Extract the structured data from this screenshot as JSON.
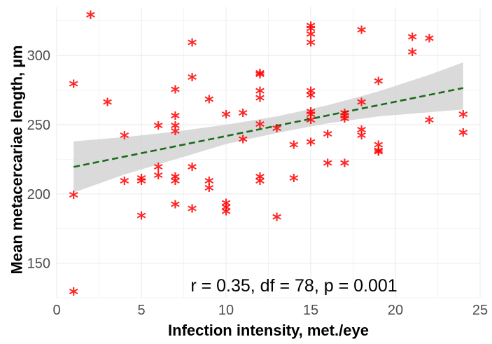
{
  "chart_data": {
    "type": "scatter",
    "title": "",
    "xlabel": "Infection intensity, met./eye",
    "ylabel": "Mean metacercariae length, µm",
    "xlim": [
      0,
      25
    ],
    "ylim": [
      125,
      335
    ],
    "x_ticks": [
      0,
      5,
      10,
      15,
      20,
      25
    ],
    "y_ticks": [
      150,
      200,
      250,
      300
    ],
    "annotation": "r = 0.35, df = 78, p = 0.001",
    "grid": true,
    "legend": "none",
    "marker": "*",
    "colors": {
      "points": "#ff0000",
      "trend_line": "#1a6b1a",
      "confidence_band": "#d3d3d3",
      "grid": "#ebebeb"
    },
    "trend_line": {
      "style": "dashed",
      "x": [
        1,
        24
      ],
      "y": [
        219.5,
        276.5
      ]
    },
    "confidence_band": {
      "x": [
        1,
        4,
        7,
        10,
        13,
        16,
        19,
        22,
        24
      ],
      "lower": [
        201,
        214,
        225,
        236,
        244,
        251,
        256,
        259,
        261
      ],
      "upper": [
        238,
        241,
        245,
        250,
        256,
        264,
        274,
        286,
        295
      ]
    },
    "points": [
      {
        "x": 1,
        "y": 129
      },
      {
        "x": 1,
        "y": 199
      },
      {
        "x": 1,
        "y": 279
      },
      {
        "x": 2,
        "y": 329
      },
      {
        "x": 3,
        "y": 266
      },
      {
        "x": 4,
        "y": 209
      },
      {
        "x": 4,
        "y": 242
      },
      {
        "x": 5,
        "y": 184
      },
      {
        "x": 5,
        "y": 209
      },
      {
        "x": 5,
        "y": 211
      },
      {
        "x": 6,
        "y": 213
      },
      {
        "x": 6,
        "y": 219
      },
      {
        "x": 6,
        "y": 249
      },
      {
        "x": 7,
        "y": 192
      },
      {
        "x": 7,
        "y": 209
      },
      {
        "x": 7,
        "y": 212
      },
      {
        "x": 7,
        "y": 245
      },
      {
        "x": 7,
        "y": 249
      },
      {
        "x": 7,
        "y": 256
      },
      {
        "x": 7,
        "y": 275
      },
      {
        "x": 8,
        "y": 189
      },
      {
        "x": 8,
        "y": 219
      },
      {
        "x": 8,
        "y": 284
      },
      {
        "x": 8,
        "y": 309
      },
      {
        "x": 9,
        "y": 204
      },
      {
        "x": 9,
        "y": 209
      },
      {
        "x": 9,
        "y": 268
      },
      {
        "x": 10,
        "y": 187
      },
      {
        "x": 10,
        "y": 190
      },
      {
        "x": 10,
        "y": 193
      },
      {
        "x": 10,
        "y": 257
      },
      {
        "x": 11,
        "y": 239
      },
      {
        "x": 11,
        "y": 258
      },
      {
        "x": 12,
        "y": 209
      },
      {
        "x": 12,
        "y": 212
      },
      {
        "x": 12,
        "y": 250
      },
      {
        "x": 12,
        "y": 269
      },
      {
        "x": 12,
        "y": 274
      },
      {
        "x": 12,
        "y": 286
      },
      {
        "x": 12,
        "y": 287
      },
      {
        "x": 13,
        "y": 183
      },
      {
        "x": 13,
        "y": 247
      },
      {
        "x": 14,
        "y": 211
      },
      {
        "x": 14,
        "y": 235
      },
      {
        "x": 15,
        "y": 237
      },
      {
        "x": 15,
        "y": 253
      },
      {
        "x": 15,
        "y": 257
      },
      {
        "x": 15,
        "y": 259
      },
      {
        "x": 15,
        "y": 271
      },
      {
        "x": 15,
        "y": 274
      },
      {
        "x": 15,
        "y": 309
      },
      {
        "x": 15,
        "y": 315
      },
      {
        "x": 15,
        "y": 319
      },
      {
        "x": 15,
        "y": 321
      },
      {
        "x": 16,
        "y": 222
      },
      {
        "x": 16,
        "y": 243
      },
      {
        "x": 17,
        "y": 222
      },
      {
        "x": 17,
        "y": 254
      },
      {
        "x": 17,
        "y": 256
      },
      {
        "x": 17,
        "y": 258
      },
      {
        "x": 18,
        "y": 242
      },
      {
        "x": 18,
        "y": 246
      },
      {
        "x": 18,
        "y": 266
      },
      {
        "x": 18,
        "y": 318
      },
      {
        "x": 19,
        "y": 230
      },
      {
        "x": 19,
        "y": 231
      },
      {
        "x": 19,
        "y": 235
      },
      {
        "x": 19,
        "y": 281
      },
      {
        "x": 21,
        "y": 302
      },
      {
        "x": 21,
        "y": 313
      },
      {
        "x": 22,
        "y": 253
      },
      {
        "x": 22,
        "y": 312
      },
      {
        "x": 24,
        "y": 244
      },
      {
        "x": 24,
        "y": 257
      }
    ]
  }
}
